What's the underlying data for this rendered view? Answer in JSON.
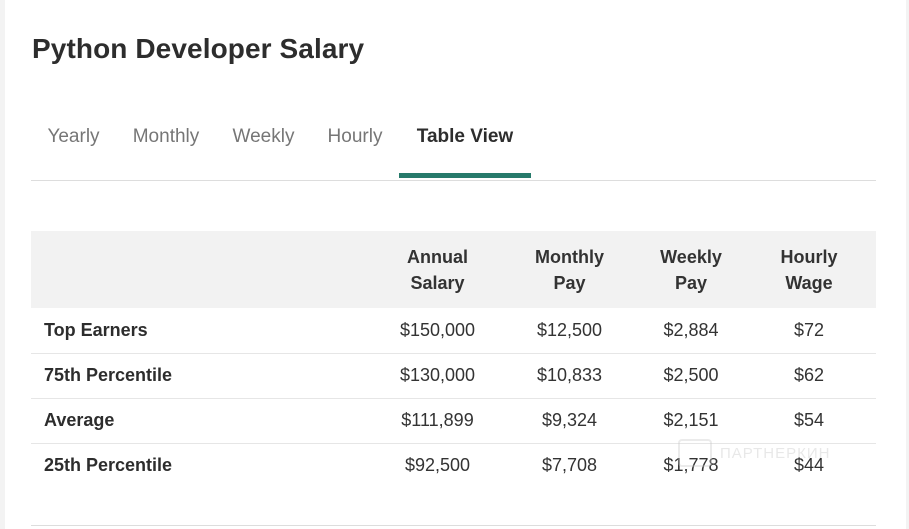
{
  "page": {
    "title": "Python Developer Salary"
  },
  "tabs": [
    {
      "label": "Yearly",
      "active": false
    },
    {
      "label": "Monthly",
      "active": false
    },
    {
      "label": "Weekly",
      "active": false
    },
    {
      "label": "Hourly",
      "active": false
    },
    {
      "label": "Table View",
      "active": true
    }
  ],
  "table": {
    "headers": [
      {
        "line1": "",
        "line2": ""
      },
      {
        "line1": "Annual",
        "line2": "Salary"
      },
      {
        "line1": "Monthly",
        "line2": "Pay"
      },
      {
        "line1": "Weekly",
        "line2": "Pay"
      },
      {
        "line1": "Hourly",
        "line2": "Wage"
      }
    ],
    "rows": [
      {
        "label": "Top Earners",
        "annual": "$150,000",
        "monthly": "$12,500",
        "weekly": "$2,884",
        "hourly": "$72"
      },
      {
        "label": "75th Percentile",
        "annual": "$130,000",
        "monthly": "$10,833",
        "weekly": "$2,500",
        "hourly": "$62"
      },
      {
        "label": "Average",
        "annual": "$111,899",
        "monthly": "$9,324",
        "weekly": "$2,151",
        "hourly": "$54"
      },
      {
        "label": "25th Percentile",
        "annual": "$92,500",
        "monthly": "$7,708",
        "weekly": "$1,778",
        "hourly": "$44"
      }
    ]
  },
  "theme": {
    "accent": "#277a6b",
    "header_bg": "#f2f2f2"
  },
  "watermark": {
    "text": "ПАРТНЕРКИН"
  }
}
